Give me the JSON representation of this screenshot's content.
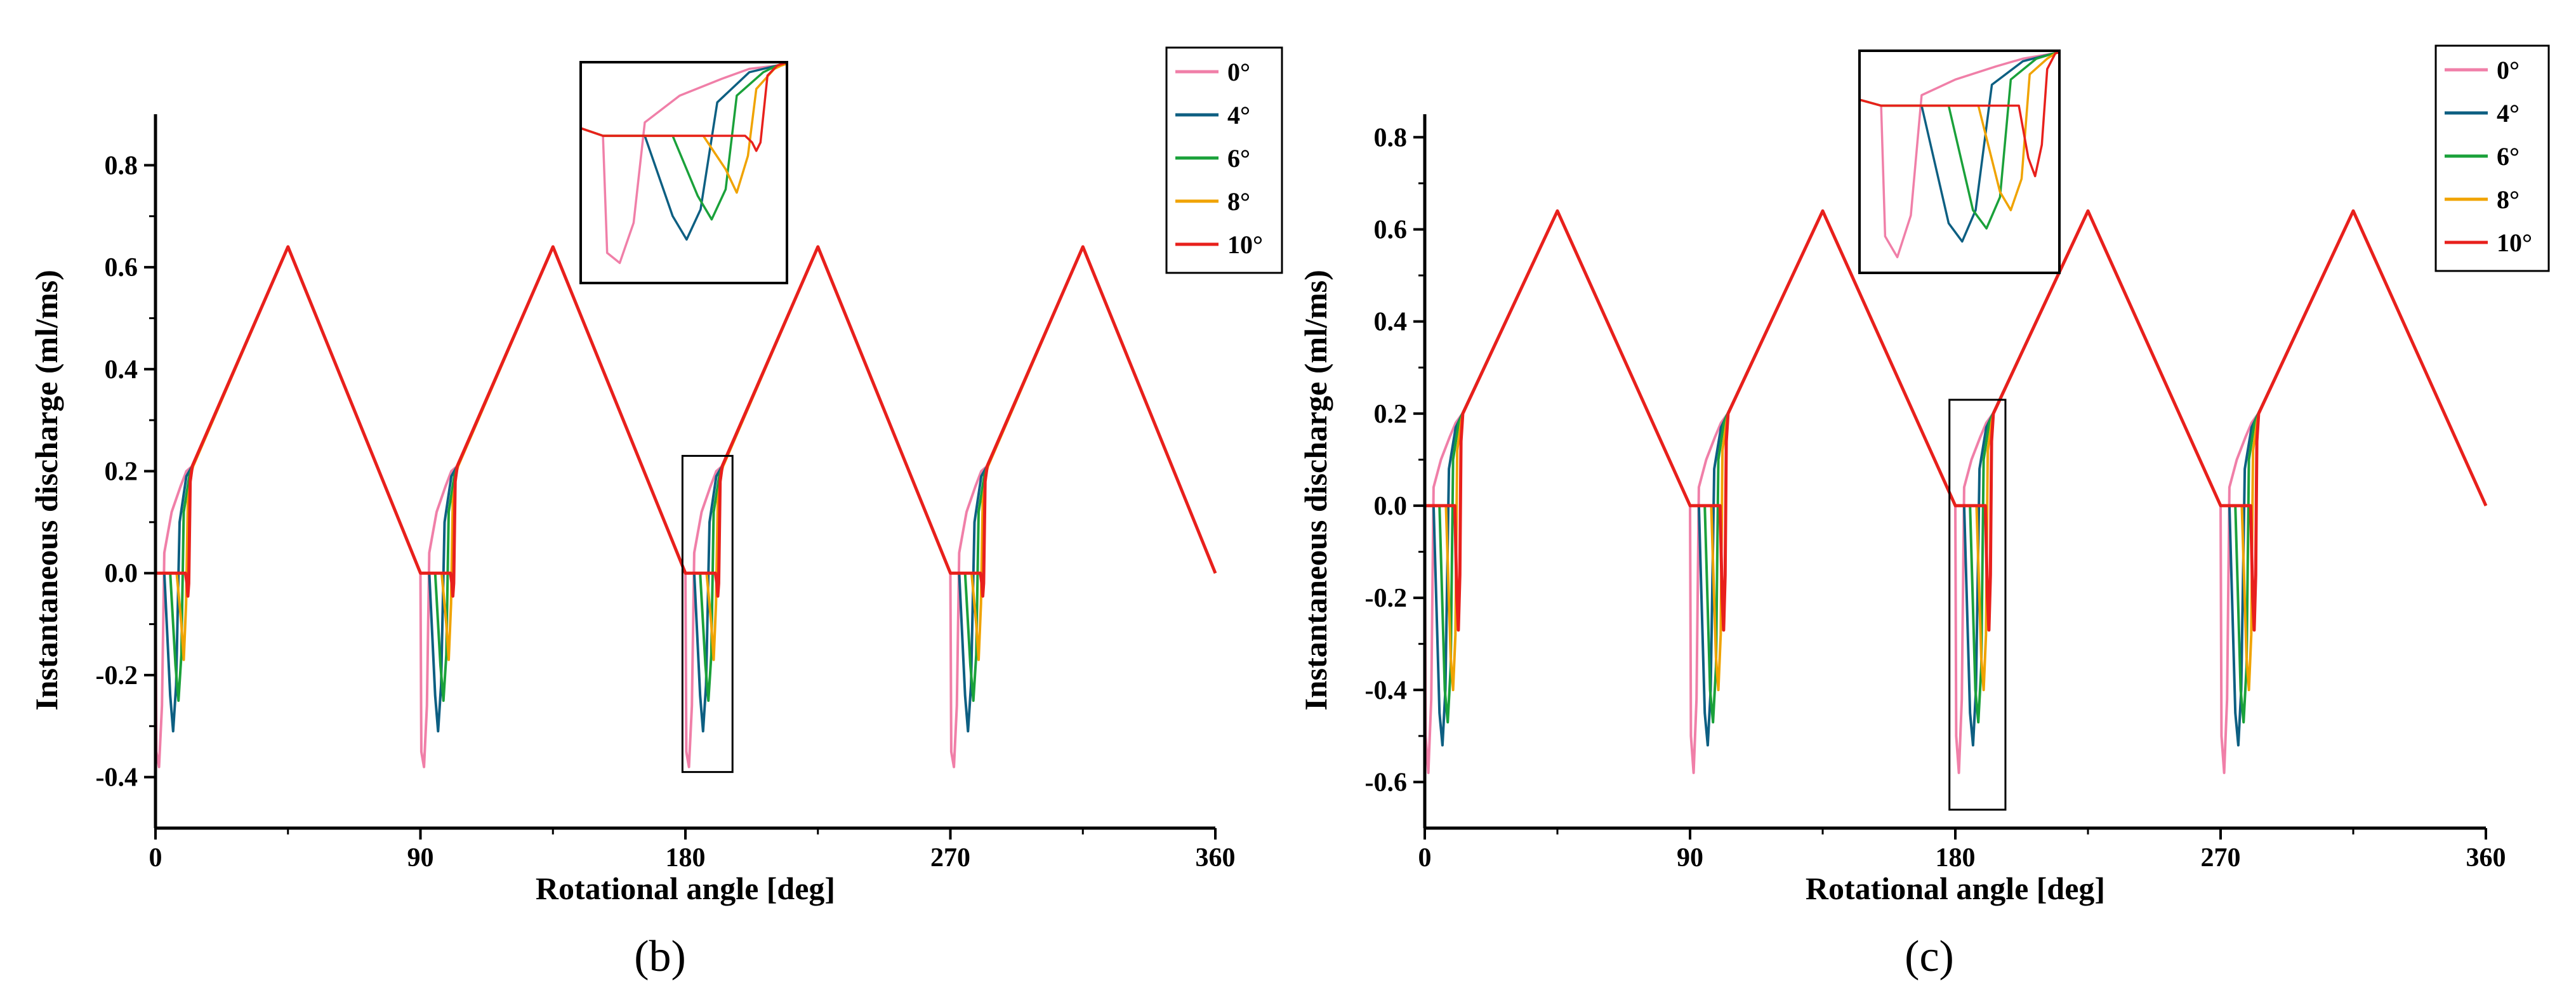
{
  "colors": {
    "0°": "#f07fa8",
    "4°": "#0d5f82",
    "6°": "#1aa13a",
    "8°": "#f0a300",
    "10°": "#e8201c"
  },
  "panels": [
    {
      "panel_label": "b",
      "panel_label_text": "(b)",
      "chart_data": {
        "type": "line",
        "title": "",
        "xlabel": "Rotational angle [deg]",
        "ylabel": "Instantaneous discharge (ml/ms)",
        "xlim": [
          0,
          360
        ],
        "ylim": [
          -0.5,
          0.9
        ],
        "xticks": [
          0,
          90,
          180,
          270,
          360
        ],
        "xtick_labels": [
          "0",
          "90",
          "180",
          "270",
          "360"
        ],
        "yticks": [
          -0.4,
          -0.2,
          0.0,
          0.2,
          0.4,
          0.6,
          0.8
        ],
        "ytick_labels": [
          "-0.4",
          "-0.2",
          "0.0",
          "0.2",
          "0.4",
          "0.6",
          "0.8"
        ],
        "legend": [
          "0°",
          "4°",
          "6°",
          "8°",
          "10°"
        ],
        "legend_position": "top-right",
        "period_deg": 90,
        "peak": {
          "x": 45,
          "y": 0.64
        },
        "shoulder_y": 0.21,
        "series": [
          {
            "name": "0°",
            "points": [
              [
                0,
                0.0
              ],
              [
                0.3,
                -0.35
              ],
              [
                1.2,
                -0.38
              ],
              [
                2.2,
                -0.26
              ],
              [
                3.0,
                0.04
              ],
              [
                5.5,
                0.12
              ],
              [
                8.5,
                0.17
              ],
              [
                10.5,
                0.2
              ],
              [
                12.5,
                0.21
              ],
              [
                45,
                0.64
              ],
              [
                90,
                0.0
              ]
            ]
          },
          {
            "name": "4°",
            "points": [
              [
                0,
                0.0
              ],
              [
                3.0,
                0.0
              ],
              [
                5.0,
                -0.24
              ],
              [
                6.0,
                -0.31
              ],
              [
                7.0,
                -0.22
              ],
              [
                8.2,
                0.1
              ],
              [
                10.5,
                0.19
              ],
              [
                12.5,
                0.21
              ],
              [
                45,
                0.64
              ],
              [
                90,
                0.0
              ]
            ]
          },
          {
            "name": "6°",
            "points": [
              [
                0,
                0.0
              ],
              [
                5.0,
                0.0
              ],
              [
                6.8,
                -0.18
              ],
              [
                7.8,
                -0.25
              ],
              [
                8.8,
                -0.16
              ],
              [
                9.6,
                0.12
              ],
              [
                11.5,
                0.19
              ],
              [
                12.5,
                0.21
              ],
              [
                45,
                0.64
              ],
              [
                90,
                0.0
              ]
            ]
          },
          {
            "name": "8°",
            "points": [
              [
                0,
                0.0
              ],
              [
                7.2,
                0.0
              ],
              [
                8.8,
                -0.1
              ],
              [
                9.6,
                -0.17
              ],
              [
                10.4,
                -0.06
              ],
              [
                11.0,
                0.14
              ],
              [
                12.3,
                0.2
              ],
              [
                12.8,
                0.21
              ],
              [
                45,
                0.64
              ],
              [
                90,
                0.0
              ]
            ]
          },
          {
            "name": "10°",
            "points": [
              [
                0,
                0.0
              ],
              [
                10.2,
                0.0
              ],
              [
                10.7,
                -0.02
              ],
              [
                11.0,
                -0.045
              ],
              [
                11.3,
                -0.02
              ],
              [
                11.8,
                0.18
              ],
              [
                12.5,
                0.21
              ],
              [
                45,
                0.64
              ],
              [
                90,
                0.0
              ]
            ]
          }
        ],
        "zoom_box_range": {
          "x": [
            179,
            196
          ],
          "y": [
            -0.39,
            0.23
          ]
        }
      }
    },
    {
      "panel_label": "c",
      "panel_label_text": "(c)",
      "chart_data": {
        "type": "line",
        "title": "",
        "xlabel": "Rotational angle [deg]",
        "ylabel": "Instantaneous discharge (ml/ms)",
        "xlim": [
          0,
          360
        ],
        "ylim": [
          -0.7,
          0.85
        ],
        "xticks": [
          0,
          90,
          180,
          270,
          360
        ],
        "xtick_labels": [
          "0",
          "90",
          "180",
          "270",
          "360"
        ],
        "yticks": [
          -0.6,
          -0.4,
          -0.2,
          0.0,
          0.2,
          0.4,
          0.6,
          0.8
        ],
        "ytick_labels": [
          "-0.6",
          "-0.4",
          "-0.2",
          "0.0",
          "0.2",
          "0.4",
          "0.6",
          "0.8"
        ],
        "legend": [
          "0°",
          "4°",
          "6°",
          "8°",
          "10°"
        ],
        "legend_position": "top-right",
        "period_deg": 90,
        "peak": {
          "x": 45,
          "y": 0.64
        },
        "shoulder_y": 0.2,
        "series": [
          {
            "name": "0°",
            "points": [
              [
                0,
                0.0
              ],
              [
                0.3,
                -0.5
              ],
              [
                1.2,
                -0.58
              ],
              [
                2.2,
                -0.42
              ],
              [
                3.0,
                0.04
              ],
              [
                5.5,
                0.1
              ],
              [
                8.5,
                0.15
              ],
              [
                10.5,
                0.18
              ],
              [
                12.8,
                0.2
              ],
              [
                45,
                0.64
              ],
              [
                90,
                0.0
              ]
            ]
          },
          {
            "name": "4°",
            "points": [
              [
                0,
                0.0
              ],
              [
                3.0,
                0.0
              ],
              [
                5.0,
                -0.45
              ],
              [
                6.0,
                -0.52
              ],
              [
                7.0,
                -0.4
              ],
              [
                8.2,
                0.08
              ],
              [
                10.5,
                0.17
              ],
              [
                12.8,
                0.2
              ],
              [
                45,
                0.64
              ],
              [
                90,
                0.0
              ]
            ]
          },
          {
            "name": "6°",
            "points": [
              [
                0,
                0.0
              ],
              [
                5.0,
                0.0
              ],
              [
                6.8,
                -0.4
              ],
              [
                7.8,
                -0.47
              ],
              [
                8.8,
                -0.35
              ],
              [
                9.6,
                0.1
              ],
              [
                11.5,
                0.18
              ],
              [
                12.8,
                0.2
              ],
              [
                45,
                0.64
              ],
              [
                90,
                0.0
              ]
            ]
          },
          {
            "name": "8°",
            "points": [
              [
                0,
                0.0
              ],
              [
                7.2,
                0.0
              ],
              [
                8.8,
                -0.33
              ],
              [
                9.6,
                -0.4
              ],
              [
                10.4,
                -0.28
              ],
              [
                11.0,
                0.12
              ],
              [
                12.3,
                0.18
              ],
              [
                12.9,
                0.2
              ],
              [
                45,
                0.64
              ],
              [
                90,
                0.0
              ]
            ]
          },
          {
            "name": "10°",
            "points": [
              [
                0,
                0.0
              ],
              [
                10.2,
                0.0
              ],
              [
                10.9,
                -0.2
              ],
              [
                11.4,
                -0.27
              ],
              [
                11.9,
                -0.15
              ],
              [
                12.3,
                0.14
              ],
              [
                12.9,
                0.2
              ],
              [
                45,
                0.64
              ],
              [
                90,
                0.0
              ]
            ]
          }
        ],
        "zoom_box_range": {
          "x": [
            178,
            197
          ],
          "y": [
            -0.66,
            0.23
          ]
        }
      }
    }
  ]
}
